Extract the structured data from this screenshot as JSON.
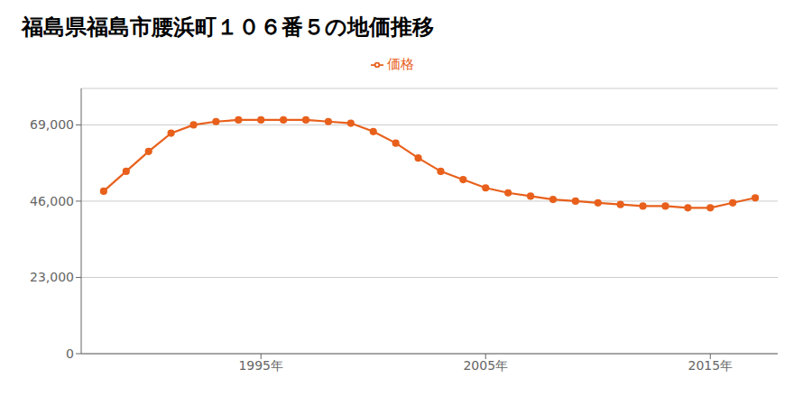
{
  "chart_data": {
    "type": "line",
    "title": "福島県福島市腰浜町１０６番５の地価推移",
    "x": [
      1988,
      1989,
      1990,
      1991,
      1992,
      1993,
      1994,
      1995,
      1996,
      1997,
      1998,
      1999,
      2000,
      2001,
      2002,
      2003,
      2004,
      2005,
      2006,
      2007,
      2008,
      2009,
      2010,
      2011,
      2012,
      2013,
      2014,
      2015,
      2016,
      2017
    ],
    "series": [
      {
        "name": "価格",
        "color": "#e8601c",
        "marker": "circle",
        "values": [
          49000,
          55000,
          61000,
          66500,
          69000,
          70000,
          70500,
          70500,
          70500,
          70500,
          70000,
          69500,
          67000,
          63500,
          59000,
          55000,
          52500,
          50000,
          48500,
          47500,
          46500,
          46000,
          45500,
          45000,
          44500,
          44500,
          44000,
          44000,
          45500,
          47000
        ]
      }
    ],
    "xlim": [
      1987,
      2018
    ],
    "xticks": [
      {
        "value": 1995,
        "label": "1995年"
      },
      {
        "value": 2005,
        "label": "2005年"
      },
      {
        "value": 2015,
        "label": "2015年"
      }
    ],
    "ylim": [
      0,
      80000
    ],
    "yticks": [
      0,
      {
        "value": 23000,
        "label": "23,000"
      },
      {
        "value": 46000,
        "label": "46,000"
      },
      {
        "value": 69000,
        "label": "69,000"
      }
    ],
    "grid": true,
    "legend": "top"
  }
}
